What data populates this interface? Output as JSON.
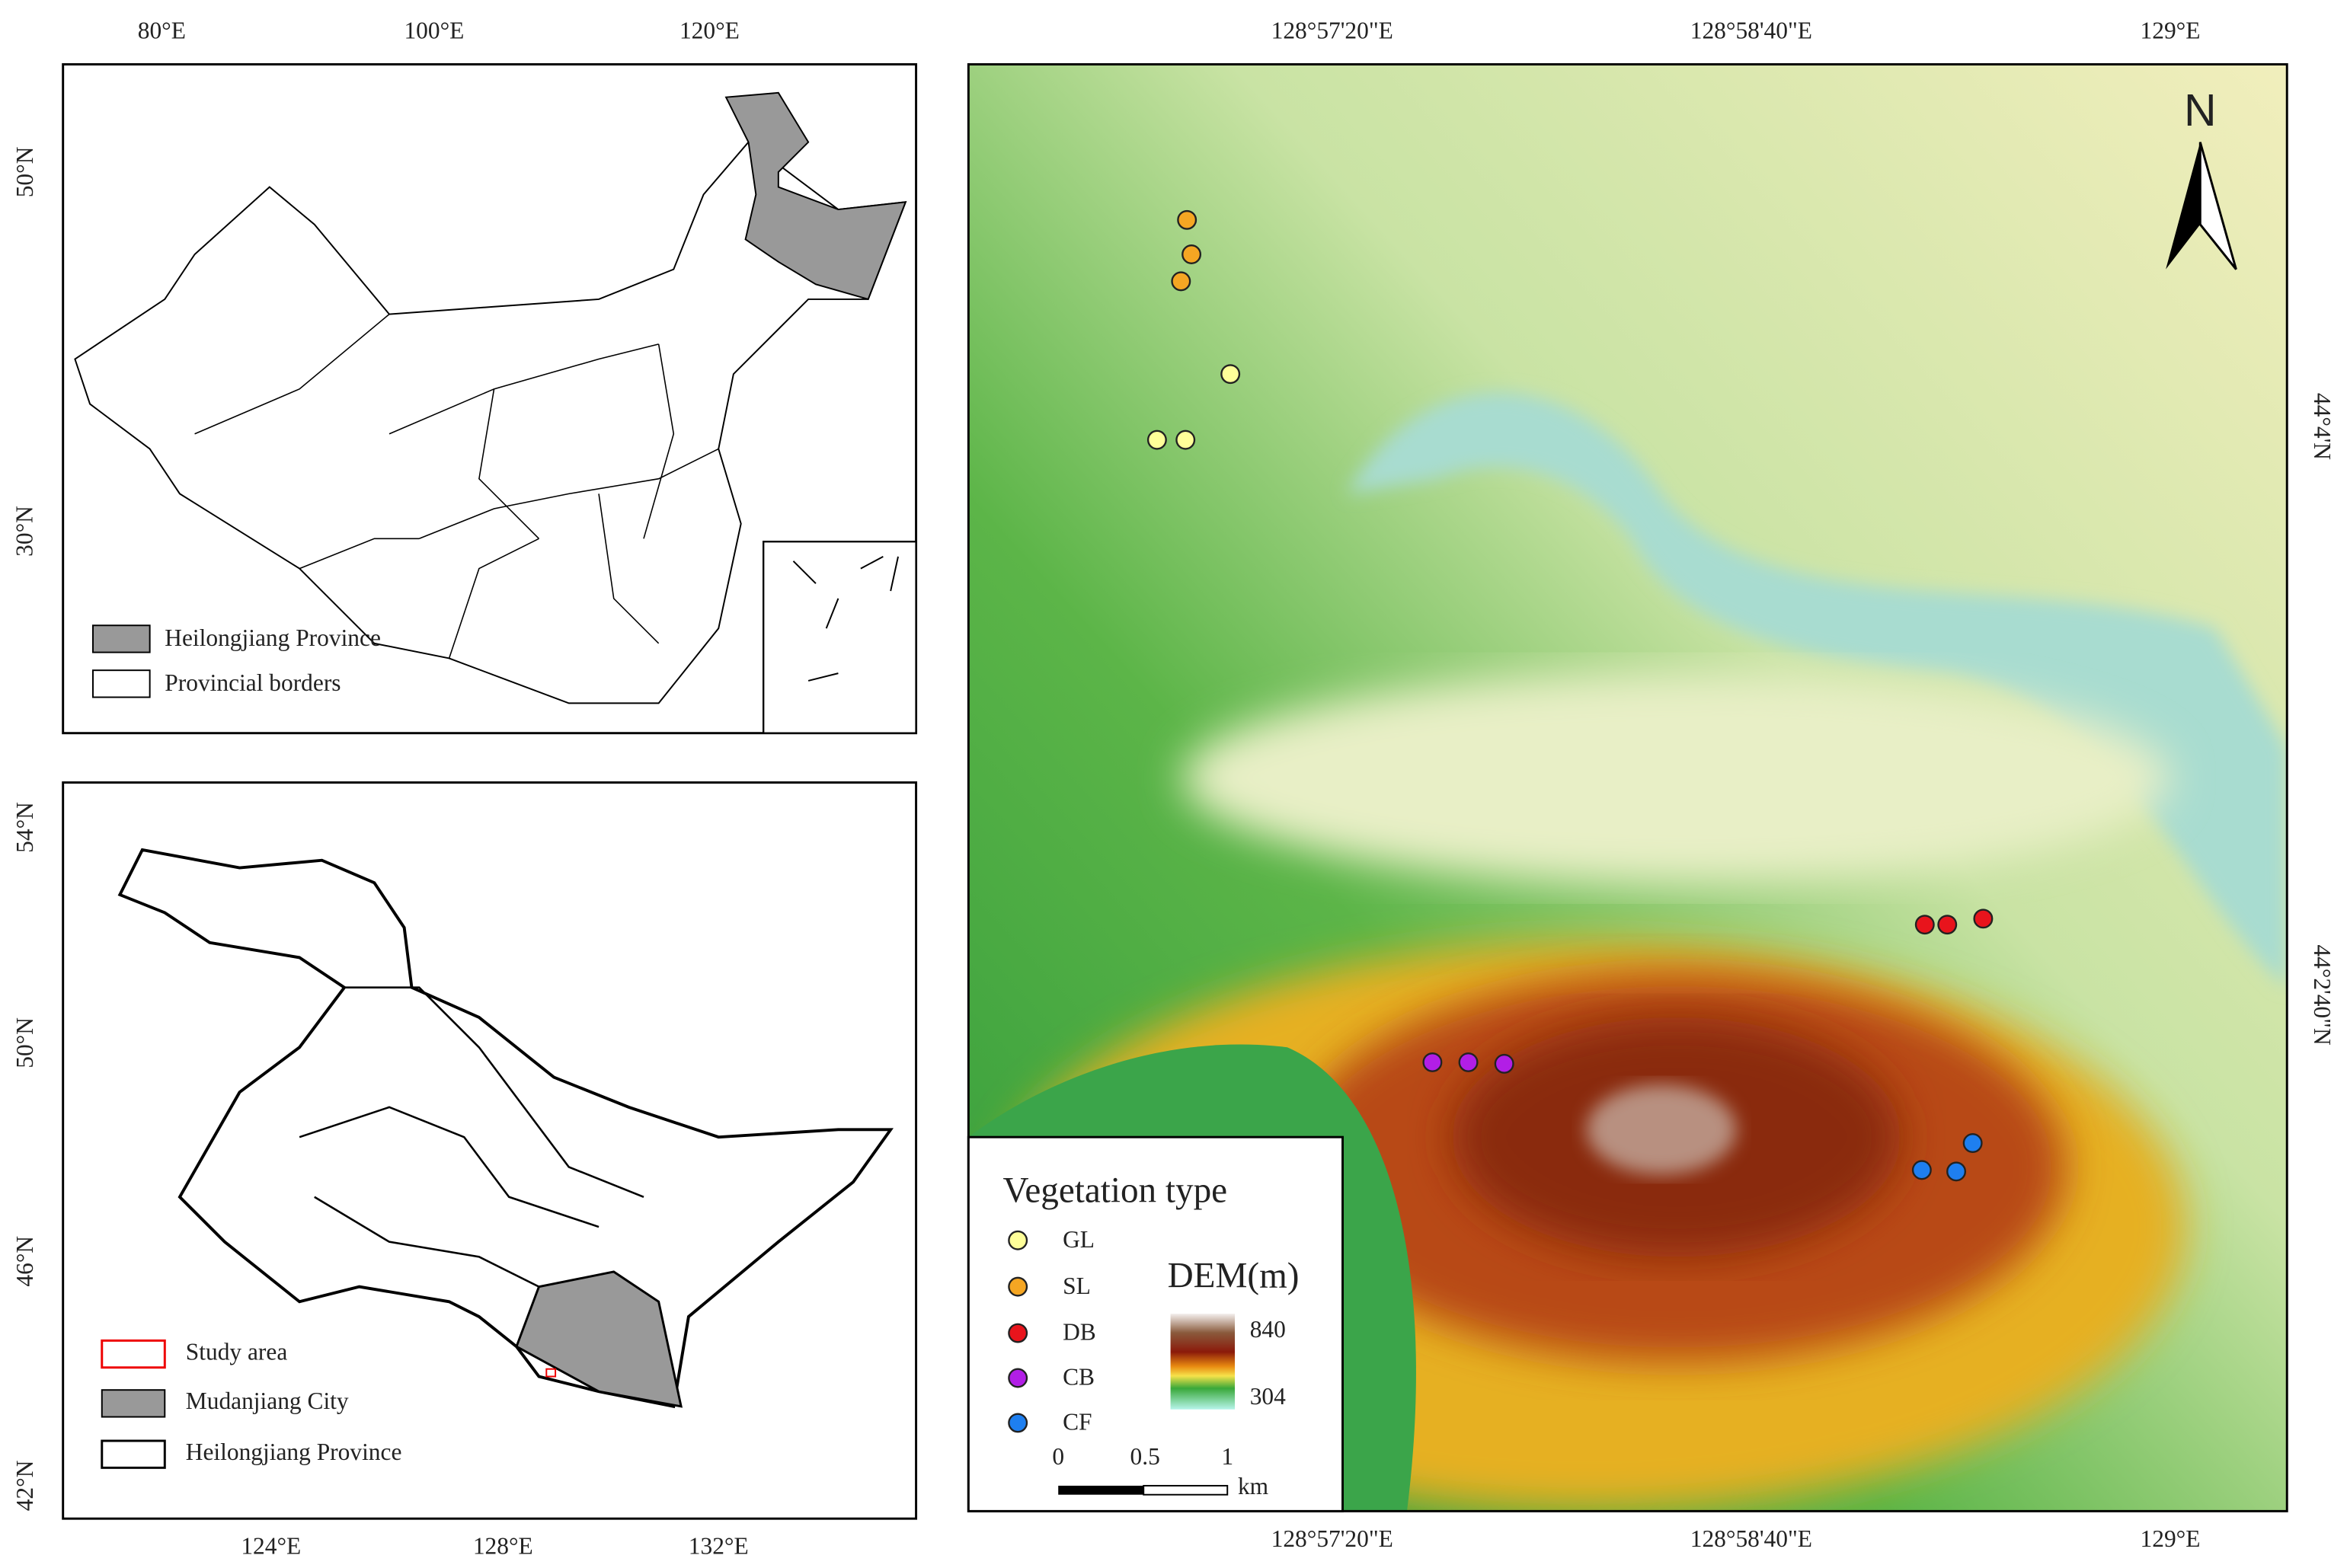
{
  "china_map": {
    "x_ticks": [
      "80°E",
      "100°E",
      "120°E"
    ],
    "y_ticks": [
      "50°N",
      "30°N"
    ],
    "legend": [
      "Heilongjiang Province",
      "Provincial borders"
    ]
  },
  "heilongjiang_map": {
    "x_ticks": [
      "124°E",
      "128°E",
      "132°E"
    ],
    "y_ticks": [
      "54°N",
      "50°N",
      "46°N",
      "42°N"
    ],
    "legend": [
      "Study area",
      "Mudanjiang City",
      "Heilongjiang Province"
    ]
  },
  "study_area_map": {
    "x_ticks_top": [
      "128°57'20\"E",
      "128°58'40\"E",
      "129°E"
    ],
    "x_ticks_bottom": [
      "128°57'20\"E",
      "128°58'40\"E",
      "129°E"
    ],
    "y_ticks": [
      "44°4'N",
      "44°2'40\"N"
    ],
    "north": "N",
    "legend_title": "Vegetation type",
    "vegetation_types": [
      {
        "label": "GL",
        "color": "#ffff99"
      },
      {
        "label": "SL",
        "color": "#f5a623"
      },
      {
        "label": "DB",
        "color": "#e8141c"
      },
      {
        "label": "CB",
        "color": "#b21ee6"
      },
      {
        "label": "CF",
        "color": "#1e7ff0"
      }
    ],
    "dem_title": "DEM(m)",
    "dem_max": 840,
    "dem_min": 304,
    "scale_labels": [
      0,
      0.5,
      1
    ],
    "scale_unit": "km"
  }
}
